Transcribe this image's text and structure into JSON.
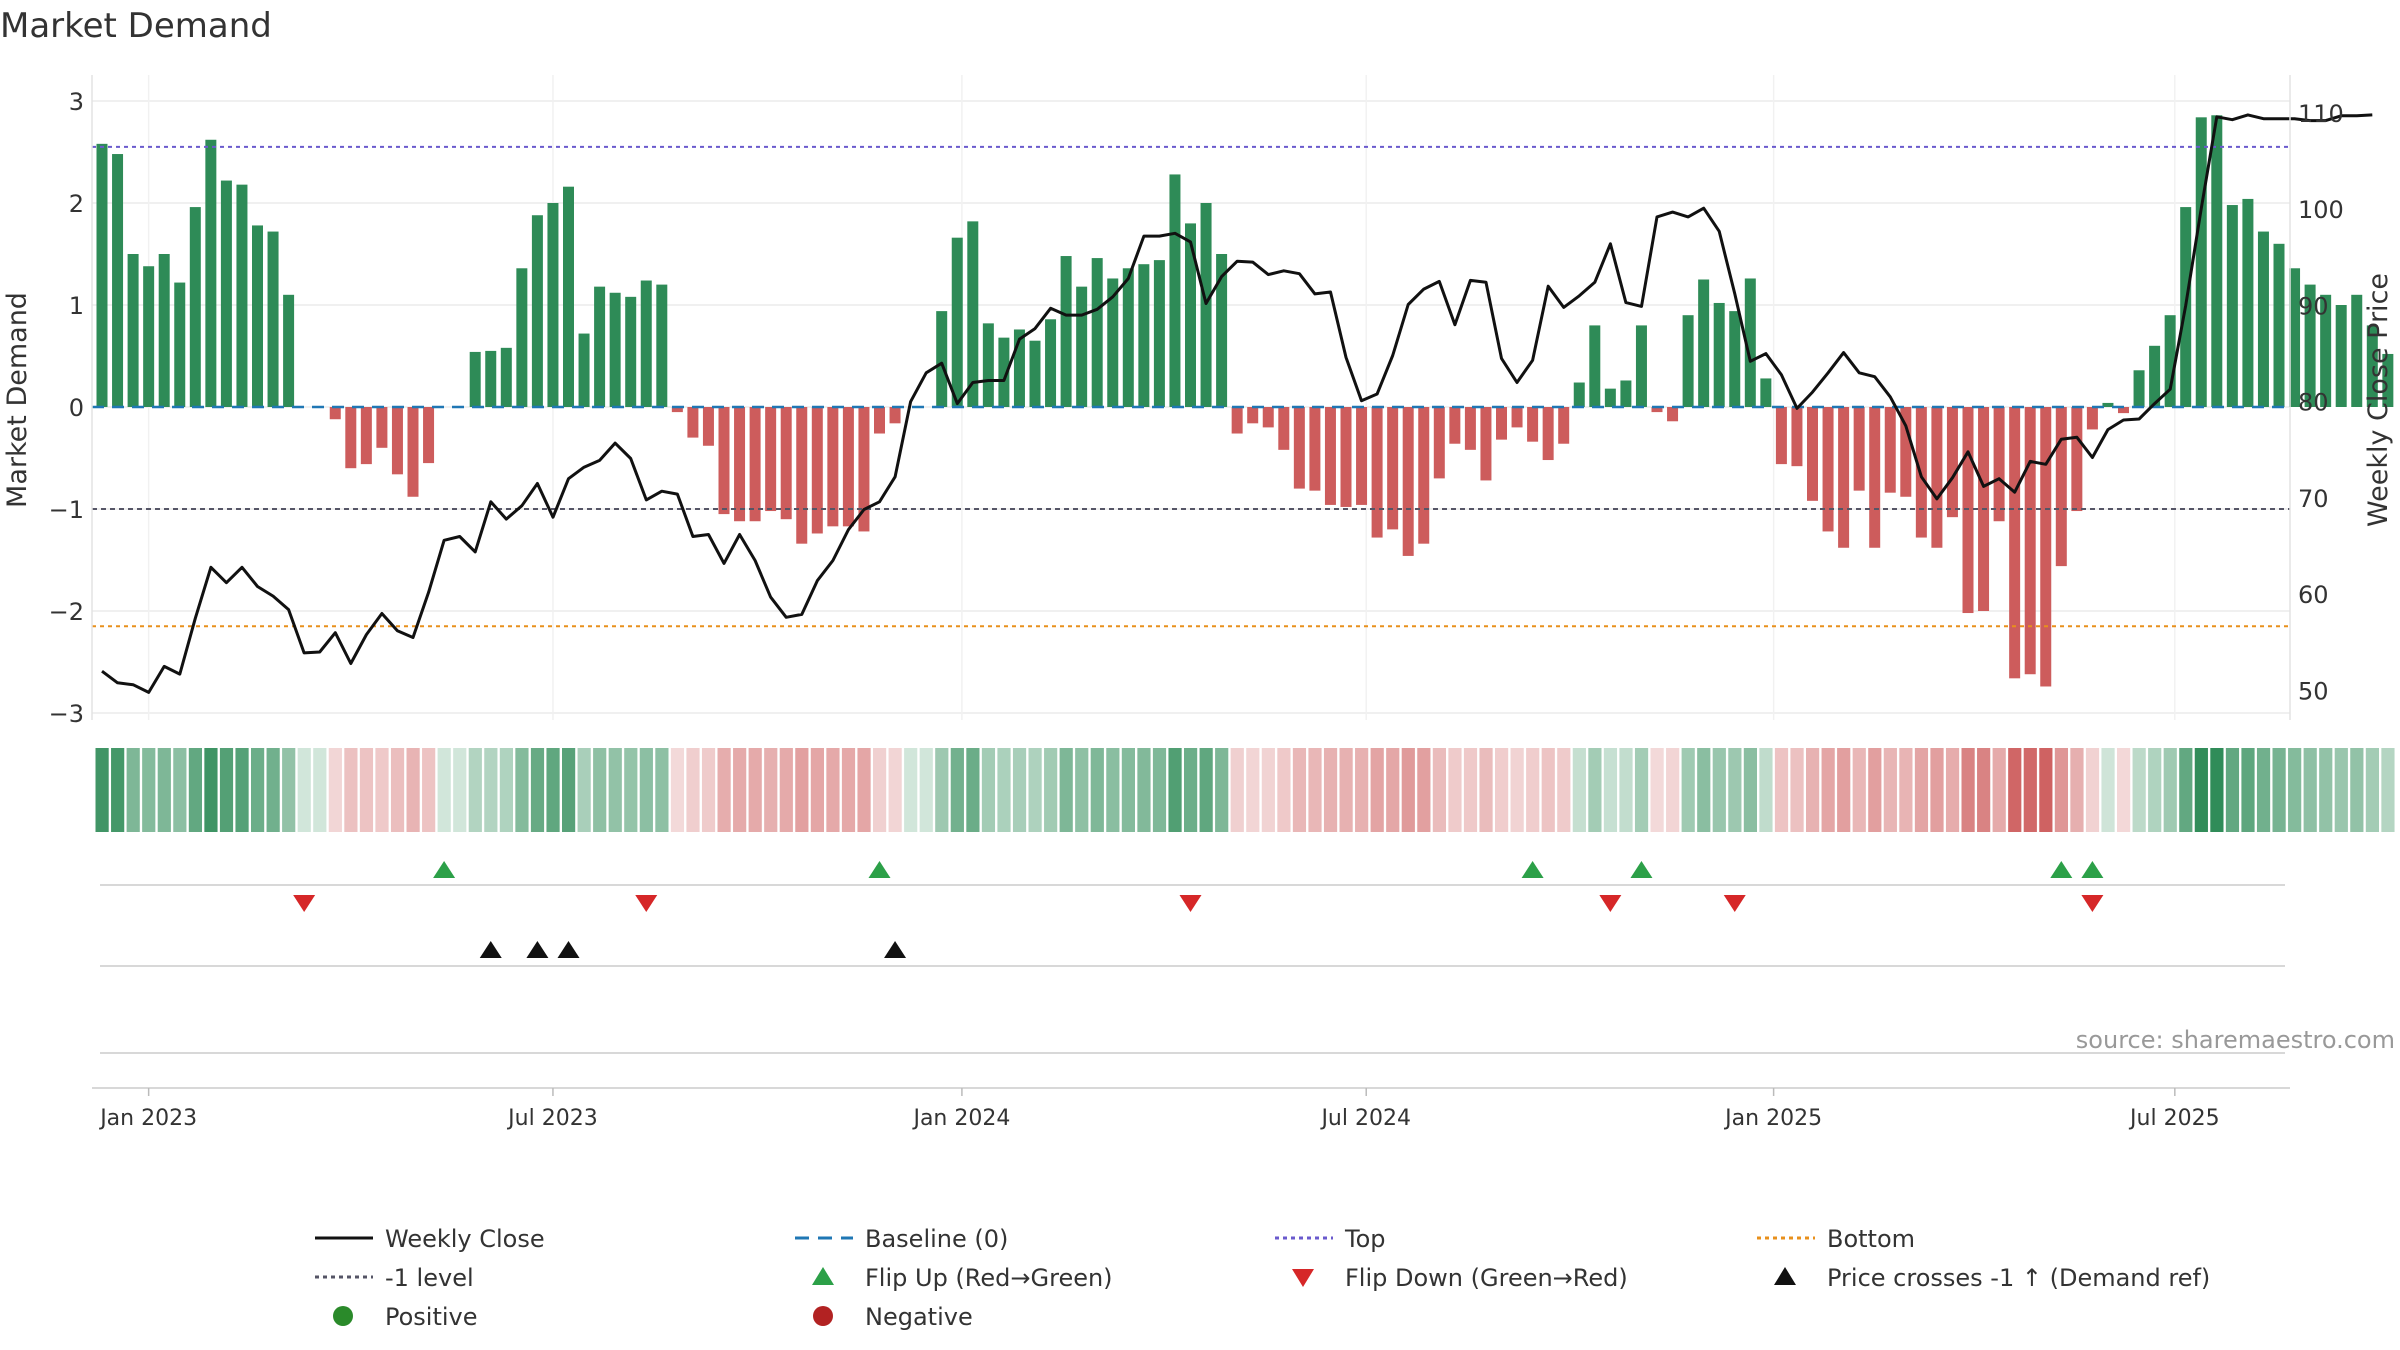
{
  "chart_data": {
    "type": "bar",
    "title": "Market Demand",
    "ylabel": "Market Demand",
    "y2label": "Weekly Close Price",
    "ylim": [
      -3.1,
      3.1
    ],
    "y2lim": [
      46.6,
      112.3
    ],
    "yticks": [
      3,
      2,
      1,
      0,
      -1,
      -2,
      -3
    ],
    "y2ticks": [
      110,
      100,
      90,
      80,
      70,
      60,
      50
    ],
    "xticks": [
      {
        "label": "Jan 2023",
        "week": 3
      },
      {
        "label": "Jul 2023",
        "week": 29
      },
      {
        "label": "Jan 2024",
        "week": 55.3
      },
      {
        "label": "Jul 2024",
        "week": 81.3
      },
      {
        "label": "Jan 2025",
        "week": 107.5
      },
      {
        "label": "Jul 2025",
        "week": 133.3
      }
    ],
    "reference_lines": {
      "top": 2.55,
      "bottom": -2.15,
      "minus_one": -1,
      "baseline": 0
    },
    "series": [
      {
        "name": "Market Demand",
        "values": [
          2.58,
          2.48,
          1.5,
          1.38,
          1.5,
          1.22,
          1.96,
          2.62,
          2.22,
          2.18,
          1.78,
          1.72,
          1.1,
          0,
          0,
          -0.12,
          -0.6,
          -0.56,
          -0.4,
          -0.66,
          -0.88,
          -0.55,
          0,
          0,
          0.54,
          0.55,
          0.58,
          1.36,
          1.88,
          2,
          2.16,
          0.72,
          1.18,
          1.12,
          1.08,
          1.24,
          1.2,
          -0.05,
          -0.3,
          -0.38,
          -1.05,
          -1.12,
          -1.12,
          -1.02,
          -1.1,
          -1.34,
          -1.24,
          -1.17,
          -1.17,
          -1.22,
          -0.26,
          -0.16,
          0,
          0,
          0.94,
          1.66,
          1.82,
          0.82,
          0.68,
          0.76,
          0.65,
          0.86,
          1.48,
          1.18,
          1.46,
          1.26,
          1.36,
          1.4,
          1.44,
          2.28,
          1.8,
          2,
          1.5,
          -0.26,
          -0.16,
          -0.2,
          -0.42,
          -0.8,
          -0.82,
          -0.96,
          -0.98,
          -0.96,
          -1.28,
          -1.2,
          -1.46,
          -1.34,
          -0.7,
          -0.36,
          -0.42,
          -0.72,
          -0.32,
          -0.2,
          -0.34,
          -0.52,
          -0.36,
          0.24,
          0.8,
          0.18,
          0.26,
          0.8,
          -0.05,
          -0.14,
          0.9,
          1.25,
          1.02,
          0.94,
          1.26,
          0.28,
          -0.56,
          -0.58,
          -0.92,
          -1.22,
          -1.38,
          -0.82,
          -1.38,
          -0.84,
          -0.88,
          -1.28,
          -1.38,
          -1.08,
          -2.02,
          -2.0,
          -1.12,
          -2.66,
          -2.62,
          -2.74,
          -1.56,
          -1.02,
          -0.22,
          0.04,
          -0.06,
          0.36,
          0.6,
          0.9,
          1.96,
          2.84,
          2.86,
          1.98,
          2.04,
          1.72,
          1.6,
          1.36,
          1.2,
          1.1,
          1.0,
          1.1,
          0.8,
          0.52
        ]
      },
      {
        "name": "Weekly Close",
        "values": [
          52,
          50.8,
          50.6,
          49.8,
          52.5,
          51.7,
          57.5,
          62.8,
          61.2,
          62.8,
          60.8,
          59.8,
          58.4,
          53.9,
          54,
          56,
          52.8,
          55.8,
          58,
          56.2,
          55.5,
          60.2,
          65.6,
          66,
          64.4,
          69.6,
          67.8,
          69.2,
          71.5,
          68,
          72,
          73.2,
          73.9,
          75.7,
          74.1,
          69.8,
          70.7,
          70.4,
          66,
          66.2,
          63.2,
          66.2,
          63.5,
          59.7,
          57.6,
          57.9,
          61.4,
          63.5,
          66.7,
          68.8,
          69.6,
          72.2,
          80,
          83,
          84,
          79.8,
          82,
          82.2,
          82.2,
          86.5,
          87.6,
          89.7,
          89,
          89,
          89.6,
          90.9,
          92.8,
          97.2,
          97.2,
          97.5,
          96.6,
          90.2,
          93,
          94.6,
          94.5,
          93.2,
          93.6,
          93.3,
          91.2,
          91.4,
          84.6,
          80.1,
          80.8,
          84.8,
          90.1,
          91.7,
          92.5,
          88,
          92.6,
          92.4,
          84.5,
          82,
          84.3,
          92,
          89.8,
          91,
          92.4,
          96.4,
          90.3,
          89.9,
          99.2,
          99.7,
          99.2,
          100.1,
          97.7,
          91.2,
          84.2,
          85,
          82.8,
          79.3,
          81,
          83,
          85.1,
          83,
          82.6,
          80.5,
          77.5,
          72.2,
          69.9,
          72.1,
          74.8,
          71.2,
          72,
          70.6,
          73.8,
          73.5,
          76.1,
          76.3,
          74.2,
          77.1,
          78.1,
          78.2,
          79.8,
          81.3,
          90,
          100.1,
          109.6,
          109.3,
          109.8,
          109.4,
          109.4,
          109.4,
          109.2,
          109.2,
          109.7,
          109.7,
          109.8
        ]
      }
    ],
    "flip_up_weeks": [
      22,
      50,
      92,
      99,
      126,
      128
    ],
    "flip_down_weeks": [
      13,
      35,
      70,
      97,
      105,
      128
    ],
    "price_cross_weeks": [
      25,
      28,
      30,
      51
    ],
    "source": "source: sharemaestro.com",
    "legend": [
      {
        "label": "Weekly Close",
        "symbol": "line",
        "color": "#111111"
      },
      {
        "label": "Baseline (0)",
        "symbol": "dash",
        "color": "#1f77b4"
      },
      {
        "label": "Top",
        "symbol": "dot",
        "color": "#6a5acd"
      },
      {
        "label": "Bottom",
        "symbol": "dot",
        "color": "#e8901c"
      },
      {
        "label": "-1 level",
        "symbol": "dot",
        "color": "#555566"
      },
      {
        "label": "Flip Up (Red→Green)",
        "symbol": "tri-up",
        "color": "#2ca048"
      },
      {
        "label": "Flip Down (Green→Red)",
        "symbol": "tri-down",
        "color": "#d62728"
      },
      {
        "label": "Price crosses -1 ↑ (Demand ref)",
        "symbol": "tri-up",
        "color": "#111111"
      },
      {
        "label": "Positive",
        "symbol": "circle",
        "color": "#2a8a2a"
      },
      {
        "label": "Negative",
        "symbol": "circle",
        "color": "#b22222"
      }
    ],
    "colors": {
      "positive": "#2e8b57",
      "negative": "#cd5c5c",
      "price": "#111111"
    }
  }
}
